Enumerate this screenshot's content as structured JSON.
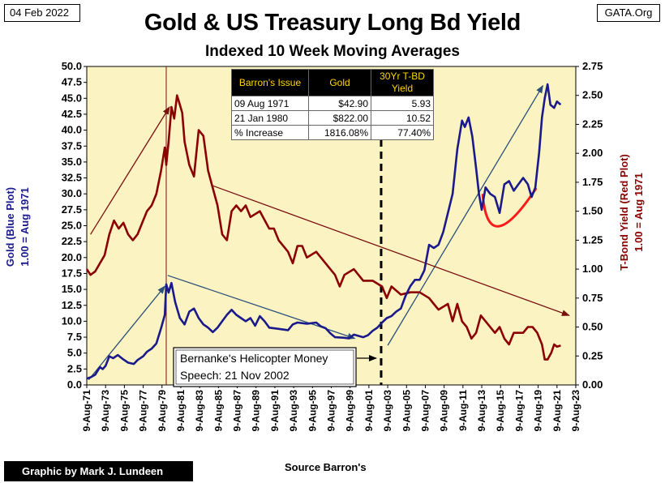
{
  "header": {
    "date": "04 Feb 2022",
    "title": "Gold & US Treasury Long Bd Yield",
    "subtitle": "Indexed 10 Week Moving Averages",
    "brand": "GATA.Org"
  },
  "footer": {
    "credit": "Graphic by Mark J. Lundeen",
    "source": "Source Barron's"
  },
  "colors": {
    "gold_series": "#1a1a8c",
    "yield_series": "#8b0000",
    "plot_background": "#fbf3c2",
    "table_header": "#000000",
    "table_header_text": "#ffd700",
    "arc": "#ff1a1a"
  },
  "chart_data": {
    "type": "line",
    "title": "Gold & US Treasury Long Bd Yield",
    "subtitle": "Indexed 10 Week Moving Averages",
    "y_left": {
      "label_lines": [
        "Gold    (Blue Plot)",
        "1.00 = Aug 1971"
      ],
      "range": [
        0,
        50
      ],
      "ticks": [
        "0.0",
        "2.5",
        "5.0",
        "7.5",
        "10.0",
        "12.5",
        "15.0",
        "17.5",
        "20.0",
        "22.5",
        "25.0",
        "27.5",
        "30.0",
        "32.5",
        "35.0",
        "37.5",
        "40.0",
        "42.5",
        "45.0",
        "47.5",
        "50.0"
      ]
    },
    "y_right": {
      "label_lines": [
        "T-Bond Yield     (Red Plot)",
        "1.00 = Aug 1971"
      ],
      "range": [
        0,
        2.75
      ],
      "ticks": [
        "0.00",
        "0.25",
        "0.50",
        "0.75",
        "1.00",
        "1.25",
        "1.50",
        "1.75",
        "2.00",
        "2.25",
        "2.50",
        "2.75"
      ]
    },
    "x_axis": {
      "range": [
        1971.6,
        2023.6
      ],
      "ticks": [
        "9-Aug-71",
        "9-Aug-73",
        "9-Aug-75",
        "9-Aug-77",
        "9-Aug-79",
        "9-Aug-81",
        "9-Aug-83",
        "9-Aug-85",
        "9-Aug-87",
        "9-Aug-89",
        "9-Aug-91",
        "9-Aug-93",
        "9-Aug-95",
        "9-Aug-97",
        "9-Aug-99",
        "9-Aug-01",
        "9-Aug-03",
        "9-Aug-05",
        "9-Aug-07",
        "9-Aug-09",
        "9-Aug-11",
        "9-Aug-13",
        "9-Aug-15",
        "9-Aug-17",
        "9-Aug-19",
        "9-Aug-21",
        "9-Aug-23"
      ]
    },
    "grid": false,
    "series": [
      {
        "name": "Gold",
        "axis": "left",
        "x": [
          1971.6,
          1972.0,
          1972.5,
          1973.0,
          1973.3,
          1973.6,
          1974.0,
          1974.4,
          1974.9,
          1975.5,
          1976.0,
          1976.6,
          1977.0,
          1977.6,
          1978.0,
          1978.5,
          1979.0,
          1979.5,
          1979.9,
          1980.05,
          1980.3,
          1980.6,
          1981.0,
          1981.5,
          1982.0,
          1982.5,
          1983.0,
          1983.5,
          1984.0,
          1984.5,
          1985.0,
          1985.5,
          1986.0,
          1986.5,
          1987.0,
          1987.5,
          1988.0,
          1988.5,
          1989.0,
          1989.5,
          1990.0,
          1990.5,
          1991.0,
          1992.0,
          1993.0,
          1993.5,
          1994.0,
          1995.0,
          1996.0,
          1996.5,
          1997.0,
          1997.5,
          1998.0,
          1999.0,
          1999.5,
          2000.0,
          2001.0,
          2001.5,
          2002.0,
          2002.5,
          2003.0,
          2003.5,
          2004.0,
          2004.5,
          2005.0,
          2005.5,
          2006.0,
          2006.5,
          2007.0,
          2007.5,
          2008.0,
          2008.5,
          2009.0,
          2009.5,
          2010.0,
          2010.5,
          2011.0,
          2011.5,
          2011.8,
          2012.2,
          2012.6,
          2013.0,
          2013.3,
          2013.6,
          2014.0,
          2014.5,
          2015.0,
          2015.5,
          2016.0,
          2016.5,
          2017.0,
          2017.5,
          2018.0,
          2018.5,
          2018.9,
          2019.3,
          2019.7,
          2020.0,
          2020.3,
          2020.6,
          2020.9,
          2021.3,
          2021.6,
          2022.0
        ],
        "values": [
          1.0,
          1.2,
          1.6,
          2.8,
          2.5,
          3.0,
          4.5,
          4.2,
          4.7,
          4.0,
          3.5,
          3.3,
          3.9,
          4.5,
          5.2,
          5.7,
          6.5,
          8.9,
          11.0,
          15.8,
          14.5,
          16.0,
          13.0,
          10.5,
          9.5,
          11.5,
          12.0,
          10.5,
          9.5,
          9.0,
          8.3,
          9.0,
          10.0,
          11.0,
          11.8,
          11.0,
          10.5,
          10.0,
          10.5,
          9.3,
          10.8,
          10.0,
          9.0,
          8.8,
          8.6,
          9.5,
          9.8,
          9.6,
          9.8,
          9.2,
          8.9,
          8.1,
          7.5,
          7.4,
          7.3,
          7.9,
          7.5,
          7.8,
          8.5,
          9.0,
          9.8,
          10.5,
          10.8,
          11.5,
          12.0,
          14.0,
          15.5,
          16.5,
          16.5,
          18.0,
          22.0,
          21.5,
          22.0,
          24.0,
          27.0,
          30.0,
          37.0,
          41.5,
          40.5,
          42.0,
          39.0,
          34.0,
          30.0,
          27.5,
          31.0,
          30.0,
          29.5,
          27.0,
          31.5,
          32.0,
          30.5,
          31.5,
          32.5,
          31.5,
          29.5,
          31.0,
          36.5,
          42.0,
          45.0,
          47.2,
          44.0,
          43.5,
          44.5,
          44.0
        ]
      },
      {
        "name": "30Yr T-BD Yield",
        "axis": "right",
        "x": [
          1971.6,
          1972.0,
          1972.5,
          1973.0,
          1973.5,
          1974.0,
          1974.5,
          1975.0,
          1975.5,
          1976.0,
          1976.5,
          1977.0,
          1977.5,
          1978.0,
          1978.5,
          1979.0,
          1979.5,
          1979.9,
          1980.05,
          1980.3,
          1980.6,
          1980.9,
          1981.2,
          1981.5,
          1981.75,
          1982.0,
          1982.5,
          1983.0,
          1983.5,
          1984.0,
          1984.5,
          1985.0,
          1985.5,
          1986.0,
          1986.5,
          1987.0,
          1987.5,
          1988.0,
          1988.5,
          1989.0,
          1990.0,
          1991.0,
          1991.5,
          1992.0,
          1993.0,
          1993.5,
          1994.0,
          1994.5,
          1995.0,
          1996.0,
          1997.0,
          1998.0,
          1998.5,
          1999.0,
          2000.0,
          2001.0,
          2002.0,
          2003.0,
          2003.5,
          2004.0,
          2005.0,
          2006.0,
          2007.0,
          2008.0,
          2008.5,
          2009.0,
          2010.0,
          2010.5,
          2011.0,
          2011.5,
          2012.0,
          2012.5,
          2013.0,
          2013.5,
          2014.0,
          2015.0,
          2015.5,
          2016.0,
          2016.5,
          2017.0,
          2018.0,
          2018.5,
          2019.0,
          2019.5,
          2020.0,
          2020.3,
          2020.6,
          2021.0,
          2021.3,
          2021.6,
          2022.0
        ],
        "values": [
          1.0,
          0.95,
          0.98,
          1.05,
          1.12,
          1.3,
          1.42,
          1.35,
          1.4,
          1.3,
          1.25,
          1.3,
          1.4,
          1.5,
          1.55,
          1.65,
          1.85,
          2.05,
          1.9,
          2.1,
          2.4,
          2.3,
          2.5,
          2.42,
          2.35,
          2.1,
          1.9,
          1.8,
          2.2,
          2.15,
          1.85,
          1.7,
          1.55,
          1.3,
          1.25,
          1.5,
          1.55,
          1.5,
          1.55,
          1.45,
          1.5,
          1.35,
          1.35,
          1.25,
          1.15,
          1.05,
          1.2,
          1.2,
          1.1,
          1.15,
          1.05,
          0.95,
          0.85,
          0.95,
          1.0,
          0.9,
          0.9,
          0.85,
          0.75,
          0.85,
          0.78,
          0.8,
          0.8,
          0.75,
          0.7,
          0.65,
          0.7,
          0.55,
          0.7,
          0.55,
          0.5,
          0.4,
          0.45,
          0.6,
          0.55,
          0.45,
          0.5,
          0.4,
          0.35,
          0.45,
          0.45,
          0.5,
          0.5,
          0.45,
          0.35,
          0.22,
          0.22,
          0.28,
          0.35,
          0.33,
          0.34
        ]
      }
    ],
    "annotations": {
      "vertical_solid_year": 1980.05,
      "vertical_dashed_year": 2002.9,
      "callout_lines": [
        "Bernanke's Helicopter Money",
        "Speech: 21 Nov 2002"
      ],
      "arrows_gold": [
        {
          "from": [
            1971.8,
            0.8
          ],
          "to": [
            1979.9,
            15.5
          ]
        },
        {
          "from": [
            1980.2,
            17.2
          ],
          "to": [
            2000.1,
            7.3
          ]
        },
        {
          "from": [
            2003.6,
            6.2
          ],
          "to": [
            2020.1,
            47.0
          ]
        }
      ],
      "arrows_yield": [
        {
          "from": [
            1972.0,
            1.3
          ],
          "to": [
            1980.4,
            2.4
          ]
        },
        {
          "from": [
            1985.0,
            1.72
          ],
          "to": [
            2022.9,
            0.6
          ]
        }
      ],
      "arc": {
        "from": [
          2013.7,
          1.65
        ],
        "via": [
          2015.4,
          1.37
        ],
        "to": [
          2019.4,
          1.7
        ]
      }
    },
    "table": {
      "headers": [
        "Barron's Issue",
        "Gold",
        "30Yr T-BD Yield"
      ],
      "rows": [
        [
          "09 Aug 1971",
          "$42.90",
          "5.93"
        ],
        [
          "21 Jan 1980",
          "$822.00",
          "10.52"
        ],
        [
          "% Increase",
          "1816.08%",
          "77.40%"
        ]
      ]
    }
  }
}
